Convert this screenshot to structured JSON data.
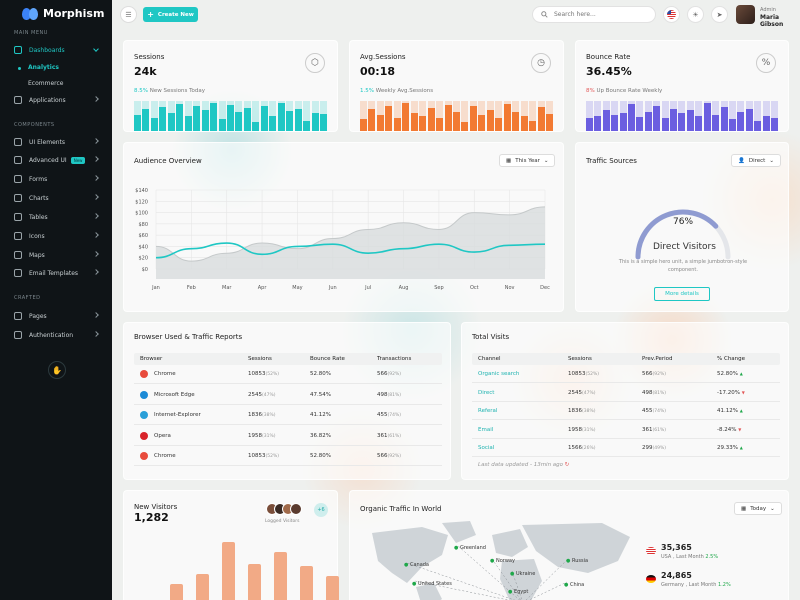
{
  "app": {
    "name": "Morphism"
  },
  "sidebar": {
    "sections": {
      "main": "MAIN MENU",
      "components": "COMPONENTS",
      "crafted": "CRAFTED"
    },
    "items": [
      {
        "label": "Dashboards",
        "icon": "home-icon"
      },
      {
        "label": "Applications",
        "icon": "grid-icon"
      },
      {
        "label": "UI Elements",
        "icon": "layers-icon"
      },
      {
        "label": "Advanced UI",
        "icon": "cube-icon",
        "badge": "New"
      },
      {
        "label": "Forms",
        "icon": "form-icon"
      },
      {
        "label": "Charts",
        "icon": "chart-icon"
      },
      {
        "label": "Tables",
        "icon": "table-icon"
      },
      {
        "label": "Icons",
        "icon": "star-icon"
      },
      {
        "label": "Maps",
        "icon": "map-icon"
      },
      {
        "label": "Email Templates",
        "icon": "mail-icon"
      },
      {
        "label": "Pages",
        "icon": "page-icon"
      },
      {
        "label": "Authentication",
        "icon": "lock-icon"
      }
    ],
    "sub": [
      "Analytics",
      "Ecommerce"
    ]
  },
  "topbar": {
    "create_label": "Create New",
    "search_placeholder": "Search here...",
    "user_role": "Admin",
    "user_name": "Maria Gibson"
  },
  "stats": [
    {
      "title": "Sessions",
      "value": "24k",
      "pct": "8.5%",
      "sub": " New Sessions Today",
      "color": "#1fc7c4",
      "pctcolor": "#1fc7c4",
      "bars": [
        0.55,
        0.72,
        0.45,
        0.8,
        0.6,
        0.9,
        0.5,
        0.85,
        0.7,
        0.95,
        0.4,
        0.88,
        0.62,
        0.78,
        0.3,
        0.82,
        0.5,
        0.92,
        0.66,
        0.75,
        0.35,
        0.6,
        0.58
      ]
    },
    {
      "title": "Avg.Sessions",
      "value": "00:18",
      "pct": "1.5%",
      "sub": " Weekly Avg.Sessions",
      "color": "#f27a33",
      "pctcolor": "#1fc7c4",
      "bars": [
        0.4,
        0.75,
        0.55,
        0.85,
        0.45,
        0.92,
        0.6,
        0.5,
        0.78,
        0.42,
        0.88,
        0.65,
        0.3,
        0.82,
        0.55,
        0.7,
        0.45,
        0.9,
        0.62,
        0.5,
        0.35,
        0.8,
        0.58
      ]
    },
    {
      "title": "Bounce Rate",
      "value": "36.45%",
      "pct": "8%",
      "sub": " Up Bounce Rate Weekly",
      "color": "#6b5ee0",
      "pctcolor": "#e25757",
      "bars": [
        0.45,
        0.5,
        0.7,
        0.55,
        0.6,
        0.9,
        0.48,
        0.65,
        0.85,
        0.42,
        0.75,
        0.6,
        0.7,
        0.5,
        0.95,
        0.55,
        0.8,
        0.4,
        0.62,
        0.72,
        0.35,
        0.5,
        0.45
      ]
    }
  ],
  "audience": {
    "title": "Audience Overview",
    "filter": "This Year"
  },
  "traffic": {
    "title": "Traffic Sources",
    "filter": "Direct",
    "percent": "76%",
    "gauge_value": 0.76,
    "heading": "Direct Visitors",
    "desc": "This is a simple hero unit, a simple jumbotron-style component.",
    "button": "More details"
  },
  "browser": {
    "title": "Browser Used & Traffic Reports",
    "headers": [
      "Browser",
      "Sessions",
      "Bounce Rate",
      "Transactions"
    ],
    "rows": [
      {
        "name": "Chrome",
        "sessions": "10853",
        "s_pct": "(52%)",
        "bounce": "52.80%",
        "trans": "566",
        "t_pct": "(92%)",
        "color": "#e84b3c"
      },
      {
        "name": "Microsoft Edge",
        "sessions": "2545",
        "s_pct": "(47%)",
        "bounce": "47.54%",
        "trans": "498",
        "t_pct": "(81%)",
        "color": "#1c8ad6"
      },
      {
        "name": "Internet-Explorer",
        "sessions": "1836",
        "s_pct": "(38%)",
        "bounce": "41.12%",
        "trans": "455",
        "t_pct": "(74%)",
        "color": "#2a9fd8"
      },
      {
        "name": "Opera",
        "sessions": "1958",
        "s_pct": "(31%)",
        "bounce": "36.82%",
        "trans": "361",
        "t_pct": "(61%)",
        "color": "#d8232a"
      },
      {
        "name": "Chrome",
        "sessions": "10853",
        "s_pct": "(52%)",
        "bounce": "52.80%",
        "trans": "566",
        "t_pct": "(92%)",
        "color": "#e84b3c"
      }
    ]
  },
  "visits": {
    "title": "Total Visits",
    "headers": [
      "Channel",
      "Sessions",
      "Prev.Period",
      "% Change"
    ],
    "rows": [
      {
        "channel": "Organic search",
        "sessions": "10853",
        "s_pct": "(52%)",
        "prev": "566",
        "p_pct": "(92%)",
        "change": "52.80%",
        "dir": "up"
      },
      {
        "channel": "Direct",
        "sessions": "2545",
        "s_pct": "(47%)",
        "prev": "498",
        "p_pct": "(81%)",
        "change": "-17.20%",
        "dir": "down"
      },
      {
        "channel": "Referal",
        "sessions": "1836",
        "s_pct": "(38%)",
        "prev": "455",
        "p_pct": "(74%)",
        "change": "41.12%",
        "dir": "up"
      },
      {
        "channel": "Email",
        "sessions": "1958",
        "s_pct": "(31%)",
        "prev": "361",
        "p_pct": "(61%)",
        "change": "-8.24%",
        "dir": "down"
      },
      {
        "channel": "Social",
        "sessions": "1566",
        "s_pct": "(26%)",
        "prev": "299",
        "p_pct": "(49%)",
        "change": "29.33%",
        "dir": "up"
      }
    ],
    "updated": "Last data updated - 13min ago"
  },
  "new_visitors": {
    "title": "New Visitors",
    "value": "1,282",
    "count_badge": "+6",
    "avatars_label": "Logged Visitors"
  },
  "organic": {
    "title": "Organic Traffic In World",
    "filter": "Today",
    "markers": [
      "Greenland",
      "Norway",
      "Russia",
      "Canada",
      "Ukraine",
      "United States",
      "China",
      "Egypt"
    ],
    "stats": [
      {
        "value": "35,365",
        "country": "USA",
        "label": " , Last Month ",
        "pct": "2.5%"
      },
      {
        "value": "24,865",
        "country": "Germany",
        "label": " , Last Month ",
        "pct": "1.2%"
      }
    ]
  },
  "chart_data": [
    {
      "type": "area",
      "title": "Audience Overview",
      "categories": [
        "Jan",
        "Feb",
        "Mar",
        "Apr",
        "May",
        "Jun",
        "Jul",
        "Aug",
        "Sep",
        "Oct",
        "Nov",
        "Dec"
      ],
      "ylim": [
        0,
        140
      ],
      "yticks": [
        "$0",
        "$20",
        "$40",
        "$60",
        "$80",
        "$100",
        "$120",
        "$140"
      ],
      "series": [
        {
          "values": [
            40,
            14,
            28,
            46,
            36,
            54,
            70,
            82,
            70,
            100,
            96,
            110
          ]
        },
        {
          "values": [
            20,
            36,
            46,
            26,
            40,
            44,
            28,
            36,
            44,
            30,
            42,
            44
          ]
        }
      ]
    },
    {
      "type": "bar",
      "title": "New Visitors",
      "values": [
        20,
        30,
        62,
        40,
        52,
        38,
        28
      ]
    }
  ]
}
